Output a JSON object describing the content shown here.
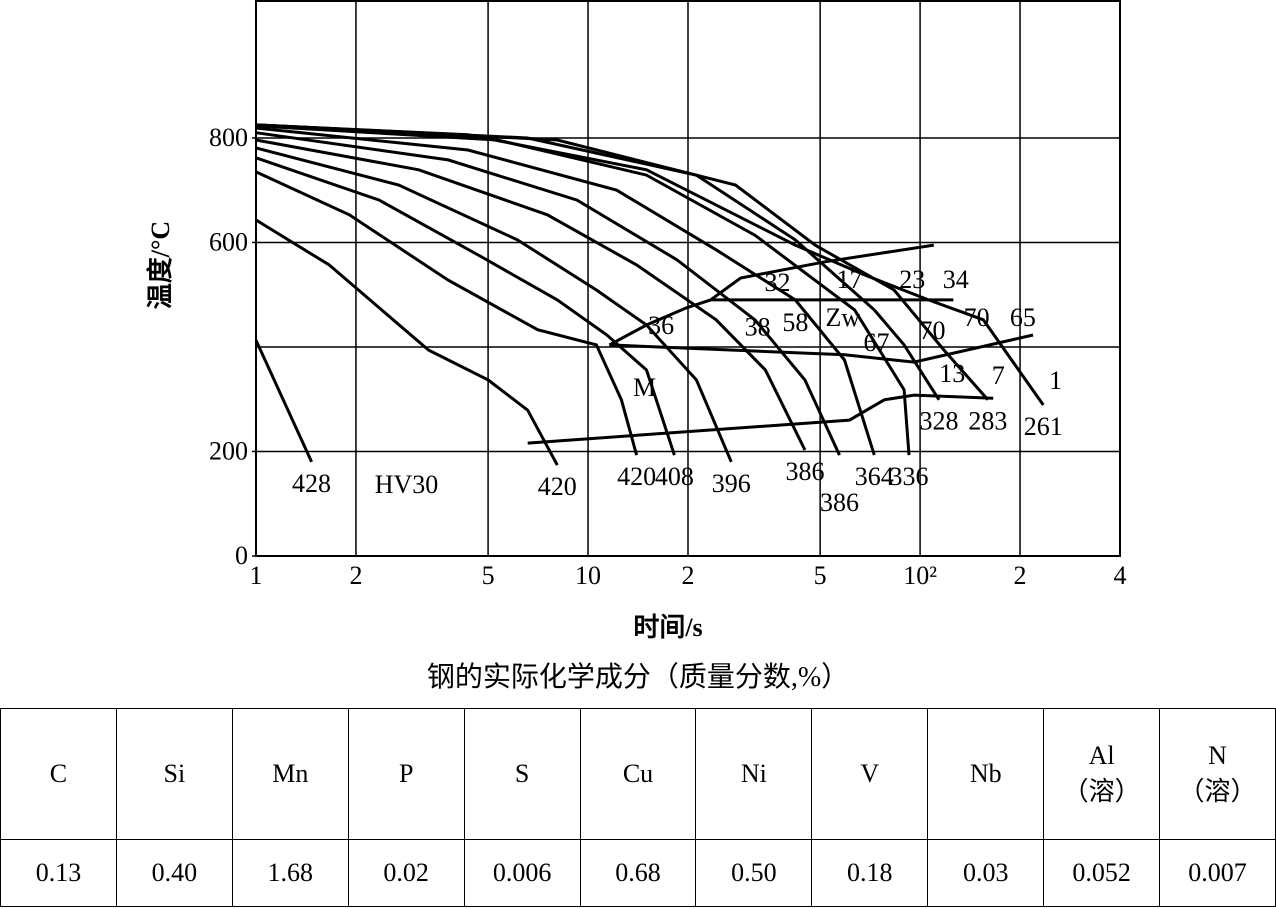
{
  "chart_data": {
    "type": "cct",
    "xlabel": "时间/s",
    "ylabel": "温度/°C",
    "xscale": "log",
    "xlim": [
      1,
      400
    ],
    "ylim": [
      0,
      1064
    ],
    "xticks": [
      1,
      2,
      5,
      10,
      {
        "value": 20,
        "label": "2"
      },
      {
        "value": 50,
        "label": "5"
      },
      {
        "value": 100,
        "label": "10²"
      },
      {
        "value": 200,
        "label": "2"
      },
      {
        "value": 400,
        "label": "4"
      }
    ],
    "yticks": [
      0,
      200,
      600,
      800
    ],
    "ygrid": [
      200,
      400,
      600,
      800
    ],
    "grid": true,
    "color": "#000000",
    "series": [
      {
        "name": "428",
        "x": [
          1,
          1.47
        ],
        "values": [
          413,
          180
        ]
      },
      {
        "name": "420",
        "x": [
          1,
          1.66,
          3.31,
          5.0,
          6.58,
          8.08
        ],
        "values": [
          643,
          557,
          394,
          337,
          279,
          174
        ]
      },
      {
        "name": "420",
        "x": [
          1,
          1.91,
          3.79,
          7.05,
          10.6,
          12.6,
          14.0
        ],
        "values": [
          735,
          653,
          528,
          433,
          404,
          299,
          193
        ]
      },
      {
        "name": "408",
        "x": [
          1,
          2.35,
          4.67,
          8.08,
          11.4,
          15.0,
          18.2
        ],
        "values": [
          762,
          681,
          576,
          490,
          423,
          356,
          193
        ]
      },
      {
        "name": "396",
        "x": [
          1,
          2.69,
          6.13,
          10.6,
          15.0,
          21.2,
          27.0
        ],
        "values": [
          781,
          710,
          605,
          509,
          442,
          337,
          180
        ]
      },
      {
        "name": "386",
        "x": [
          1,
          3.09,
          7.54,
          14.0,
          24.3,
          34.2,
          45.0
        ],
        "values": [
          796,
          739,
          653,
          557,
          452,
          356,
          203
        ]
      },
      {
        "name": "386",
        "x": [
          1,
          3.79,
          9.26,
          18.5,
          31.8,
          45.0,
          57.2
        ],
        "values": [
          810,
          758,
          681,
          567,
          452,
          337,
          193
        ]
      },
      {
        "name": "364",
        "x": [
          1,
          4.35,
          12.2,
          24.3,
          42.1,
          59.2,
          72.8
        ],
        "values": [
          819,
          777,
          700,
          586,
          490,
          375,
          193
        ]
      },
      {
        "name": "336",
        "x": [
          1,
          5.35,
          15.0,
          31.8,
          63.5,
          89.5,
          92.6
        ],
        "values": [
          823,
          796,
          729,
          614,
          471,
          318,
          193
        ]
      },
      {
        "name": "328",
        "x": [
          1,
          6.58,
          21.2,
          42.1,
          72.8,
          89.5,
          114
        ],
        "values": [
          825,
          800,
          729,
          605,
          471,
          404,
          299
        ]
      },
      {
        "name": "283",
        "x": [
          1,
          8.08,
          27.8,
          48.3,
          83.5,
          118,
          160
        ],
        "values": [
          825,
          796,
          710,
          595,
          509,
          394,
          299
        ]
      },
      {
        "name": "261",
        "x": [
          1,
          4.35,
          15.0,
          42.1,
          68.0,
          106,
          155,
          235
        ],
        "values": [
          825,
          806,
          739,
          595,
          538,
          490,
          452,
          289
        ]
      }
    ],
    "boundaries": [
      {
        "x": [
          23.4,
          28.8,
          51.7,
          110
        ],
        "values": [
          490,
          532,
          563,
          595
        ]
      },
      {
        "x": [
          23.4,
          126
        ],
        "values": [
          490,
          490
        ]
      },
      {
        "x": [
          11.6,
          15.0,
          19.8,
          23.4
        ],
        "values": [
          404,
          442,
          475,
          490
        ]
      },
      {
        "x": [
          11.6,
          59.2,
          95.9,
          219
        ],
        "values": [
          404,
          385,
          371,
          423
        ]
      },
      {
        "x": [
          6.58,
          61.3,
          78.0,
          95.9,
          166
        ],
        "values": [
          216,
          260,
          299,
          308,
          302
        ]
      }
    ],
    "annotations": [
      {
        "text": "32",
        "x": 37.2,
        "y": 519
      },
      {
        "text": "17",
        "x": 61.3,
        "y": 524
      },
      {
        "text": "23",
        "x": 94.7,
        "y": 524
      },
      {
        "text": "34",
        "x": 128,
        "y": 524
      },
      {
        "text": "36",
        "x": 16.6,
        "y": 436
      },
      {
        "text": "38",
        "x": 32.4,
        "y": 433
      },
      {
        "text": "58",
        "x": 42.1,
        "y": 442
      },
      {
        "text": "Zw",
        "x": 58.5,
        "y": 452
      },
      {
        "text": "67",
        "x": 73.9,
        "y": 404
      },
      {
        "text": "70",
        "x": 109,
        "y": 427
      },
      {
        "text": "70",
        "x": 148,
        "y": 452
      },
      {
        "text": "65",
        "x": 204,
        "y": 452
      },
      {
        "text": "13",
        "x": 125,
        "y": 344
      },
      {
        "text": "7",
        "x": 172,
        "y": 341
      },
      {
        "text": "1",
        "x": 256,
        "y": 331
      },
      {
        "text": "M",
        "x": 14.8,
        "y": 318
      },
      {
        "text": "HV30",
        "x": 2.84,
        "y": 132
      }
    ]
  },
  "table": {
    "caption": "钢的实际化学成分（质量分数,%）",
    "header": [
      [
        "C"
      ],
      [
        "Si"
      ],
      [
        "Mn"
      ],
      [
        "P"
      ],
      [
        "S"
      ],
      [
        "Cu"
      ],
      [
        "Ni"
      ],
      [
        "V"
      ],
      [
        "Nb"
      ],
      [
        "Al",
        "（溶）"
      ],
      [
        "N",
        "（溶）"
      ]
    ],
    "rows": [
      [
        "0.13",
        "0.40",
        "1.68",
        "0.02",
        "0.006",
        "0.68",
        "0.50",
        "0.18",
        "0.03",
        "0.052",
        "0.007"
      ]
    ]
  }
}
